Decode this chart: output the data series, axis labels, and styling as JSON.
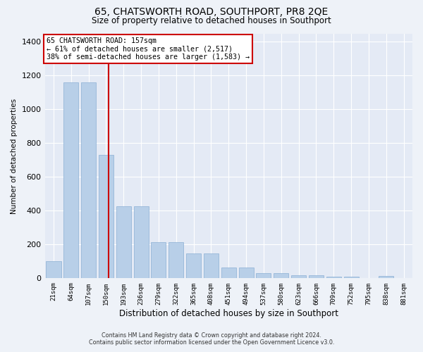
{
  "title": "65, CHATSWORTH ROAD, SOUTHPORT, PR8 2QE",
  "subtitle": "Size of property relative to detached houses in Southport",
  "xlabel": "Distribution of detached houses by size in Southport",
  "ylabel": "Number of detached properties",
  "categories": [
    "21sqm",
    "64sqm",
    "107sqm",
    "150sqm",
    "193sqm",
    "236sqm",
    "279sqm",
    "322sqm",
    "365sqm",
    "408sqm",
    "451sqm",
    "494sqm",
    "537sqm",
    "580sqm",
    "623sqm",
    "666sqm",
    "709sqm",
    "752sqm",
    "795sqm",
    "838sqm",
    "881sqm"
  ],
  "values": [
    100,
    1160,
    1160,
    730,
    425,
    425,
    215,
    215,
    148,
    148,
    65,
    65,
    32,
    32,
    18,
    18,
    10,
    10,
    0,
    15,
    2
  ],
  "bar_color": "#b8cfe8",
  "bar_edge_color": "#8aafd4",
  "vline_color": "#cc0000",
  "vline_pos": 3.16,
  "annotation_line1": "65 CHATSWORTH ROAD: 157sqm",
  "annotation_line2": "← 61% of detached houses are smaller (2,517)",
  "annotation_line3": "38% of semi-detached houses are larger (1,583) →",
  "annotation_box_color": "#ffffff",
  "annotation_box_edge": "#cc0000",
  "ylim": [
    0,
    1450
  ],
  "yticks": [
    0,
    200,
    400,
    600,
    800,
    1000,
    1200,
    1400
  ],
  "footer1": "Contains HM Land Registry data © Crown copyright and database right 2024.",
  "footer2": "Contains public sector information licensed under the Open Government Licence v3.0.",
  "bg_color": "#eef2f8",
  "plot_bg_color": "#e4eaf5"
}
